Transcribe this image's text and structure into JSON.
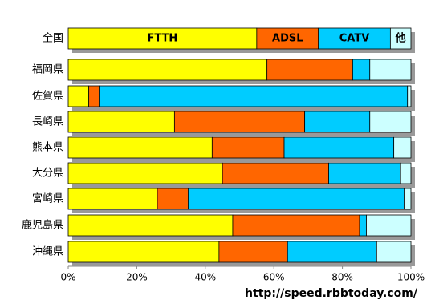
{
  "chart_data": {
    "type": "stacked-bar-horizontal",
    "categories": [
      "全国",
      "福岡県",
      "佐賀県",
      "長崎県",
      "熊本県",
      "大分県",
      "宮崎県",
      "鹿児島県",
      "沖縄県"
    ],
    "series": [
      {
        "name": "FTTH",
        "color": "#ffff00",
        "values": [
          55,
          58,
          6,
          31,
          42,
          45,
          26,
          48,
          44
        ]
      },
      {
        "name": "ADSL",
        "color": "#ff6600",
        "values": [
          18,
          25,
          3,
          38,
          21,
          31,
          9,
          37,
          20
        ]
      },
      {
        "name": "CATV",
        "color": "#00ccff",
        "values": [
          21,
          5,
          90,
          19,
          32,
          21,
          63,
          2,
          26
        ]
      },
      {
        "name": "他",
        "color": "#ccffff",
        "values": [
          6,
          12,
          1,
          12,
          5,
          3,
          2,
          13,
          10
        ]
      }
    ],
    "xlim": [
      0,
      100
    ],
    "xticks": [
      {
        "value": 0,
        "label": "0%"
      },
      {
        "value": 20,
        "label": "20%"
      },
      {
        "value": 40,
        "label": "40%"
      },
      {
        "value": 60,
        "label": "60%"
      },
      {
        "value": 80,
        "label": "80%"
      },
      {
        "value": 100,
        "label": "100%"
      }
    ],
    "annotation": "http://speed.rbbtoday.com/"
  }
}
